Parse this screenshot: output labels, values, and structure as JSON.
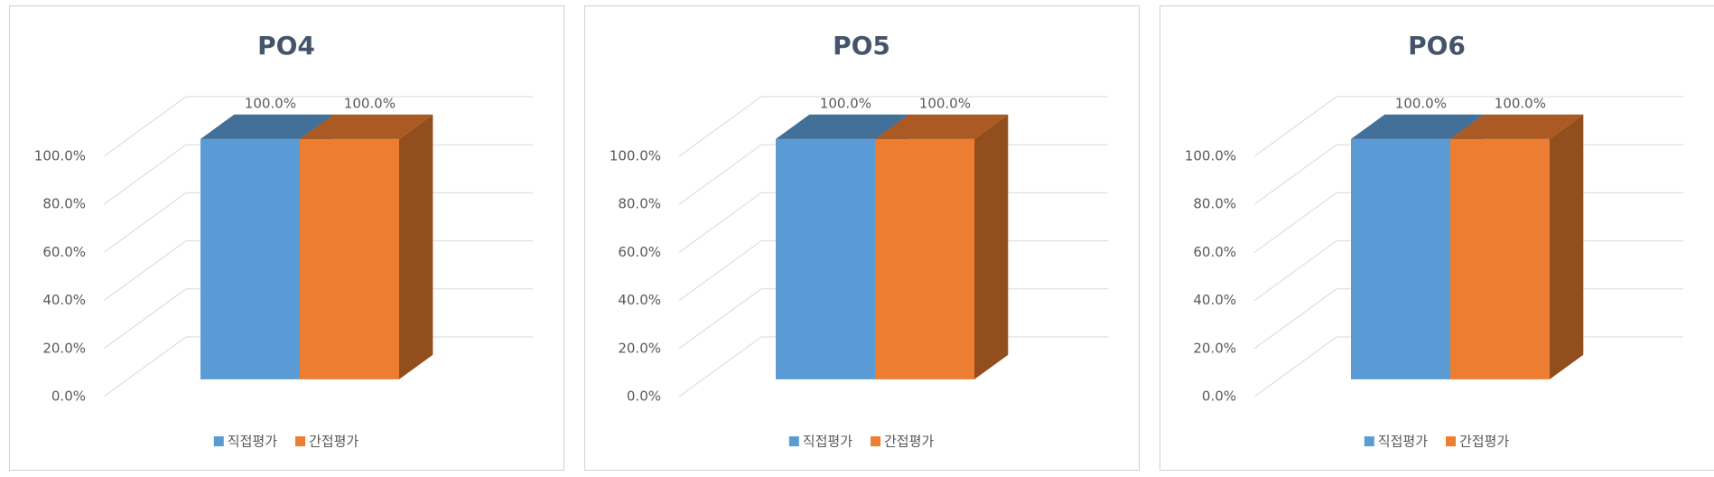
{
  "chart_data": [
    {
      "type": "bar3d",
      "title": "PO4",
      "categories": [
        null
      ],
      "series": [
        {
          "name": "직접평가",
          "color": "#5b9bd5",
          "values": [
            100
          ],
          "value_labels": [
            "100.0%"
          ]
        },
        {
          "name": "간접평가",
          "color": "#ed7d31",
          "values": [
            100
          ],
          "value_labels": [
            "100.0%"
          ]
        }
      ],
      "ylim": [
        0,
        100
      ],
      "yticks": [
        {
          "value": 0,
          "label": "0.0%"
        },
        {
          "value": 20,
          "label": "20.0%"
        },
        {
          "value": 40,
          "label": "40.0%"
        },
        {
          "value": 60,
          "label": "60.0%"
        },
        {
          "value": 80,
          "label": "80.0%"
        },
        {
          "value": 100,
          "label": "100.0%"
        }
      ],
      "grid": true,
      "legend": "bottom"
    },
    {
      "type": "bar3d",
      "title": "PO5",
      "categories": [
        null
      ],
      "series": [
        {
          "name": "직접평가",
          "color": "#5b9bd5",
          "values": [
            100
          ],
          "value_labels": [
            "100.0%"
          ]
        },
        {
          "name": "간접평가",
          "color": "#ed7d31",
          "values": [
            100
          ],
          "value_labels": [
            "100.0%"
          ]
        }
      ],
      "ylim": [
        0,
        100
      ],
      "yticks": [
        {
          "value": 0,
          "label": "0.0%"
        },
        {
          "value": 20,
          "label": "20.0%"
        },
        {
          "value": 40,
          "label": "40.0%"
        },
        {
          "value": 60,
          "label": "60.0%"
        },
        {
          "value": 80,
          "label": "80.0%"
        },
        {
          "value": 100,
          "label": "100.0%"
        }
      ],
      "grid": true,
      "legend": "bottom"
    },
    {
      "type": "bar3d",
      "title": "PO6",
      "categories": [
        null
      ],
      "series": [
        {
          "name": "직접평가",
          "color": "#5b9bd5",
          "values": [
            100
          ],
          "value_labels": [
            "100.0%"
          ]
        },
        {
          "name": "간접평가",
          "color": "#ed7d31",
          "values": [
            100
          ],
          "value_labels": [
            "100.0%"
          ]
        }
      ],
      "ylim": [
        0,
        100
      ],
      "yticks": [
        {
          "value": 0,
          "label": "0.0%"
        },
        {
          "value": 20,
          "label": "20.0%"
        },
        {
          "value": 40,
          "label": "40.0%"
        },
        {
          "value": 60,
          "label": "60.0%"
        },
        {
          "value": 80,
          "label": "80.0%"
        },
        {
          "value": 100,
          "label": "100.0%"
        }
      ],
      "grid": true,
      "legend": "bottom"
    }
  ]
}
